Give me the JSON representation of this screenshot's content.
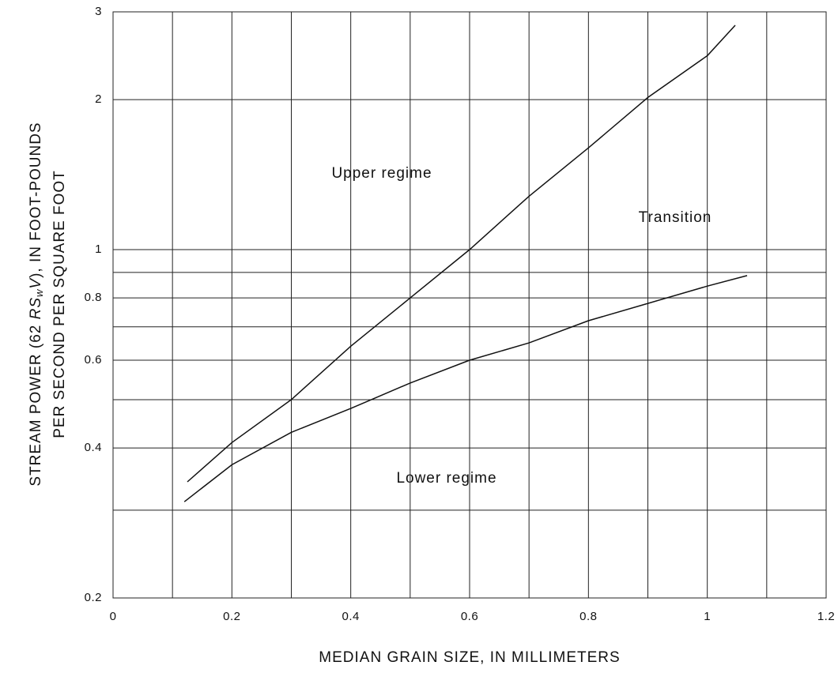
{
  "chart_data": {
    "type": "line",
    "xlabel": "MEDIAN GRAIN SIZE, IN MILLIMETERS",
    "ylabel": [
      [
        "STREAM POWER (62 ",
        "RS",
        "w",
        "V",
        "), IN FOOT-POUNDS"
      ],
      [
        "PER SECOND PER SQUARE FOOT"
      ]
    ],
    "annotations": [
      "Upper regime",
      "Transition",
      "Lower regime"
    ],
    "xlim": [
      0,
      1.2
    ],
    "xticks": [
      0,
      0.2,
      0.4,
      0.6,
      0.8,
      1,
      1.2
    ],
    "xminor": [
      0.1,
      0.3,
      0.5,
      0.7,
      0.9,
      1.1
    ],
    "ylim": [
      0.2,
      3
    ],
    "yticks": [
      0.2,
      0.4,
      0.6,
      0.8,
      1,
      2,
      3
    ],
    "yminor": [
      0.3,
      0.5,
      0.7,
      0.9
    ],
    "log_y": true,
    "grid": true,
    "series": [
      {
        "color": "#111",
        "x": [
          0.125,
          0.2,
          0.3,
          0.4,
          0.5,
          0.6,
          0.7,
          0.8,
          0.9,
          1.0,
          1.047
        ],
        "values": [
          0.342,
          0.41,
          0.5,
          0.64,
          0.8,
          1.0,
          1.28,
          1.6,
          2.02,
          2.45,
          2.82
        ]
      },
      {
        "color": "#111",
        "x": [
          0.12,
          0.2,
          0.3,
          0.4,
          0.5,
          0.6,
          0.7,
          0.8,
          0.9,
          1.0,
          1.067
        ],
        "values": [
          0.312,
          0.37,
          0.43,
          0.48,
          0.54,
          0.6,
          0.65,
          0.72,
          0.78,
          0.845,
          0.887
        ]
      }
    ]
  }
}
